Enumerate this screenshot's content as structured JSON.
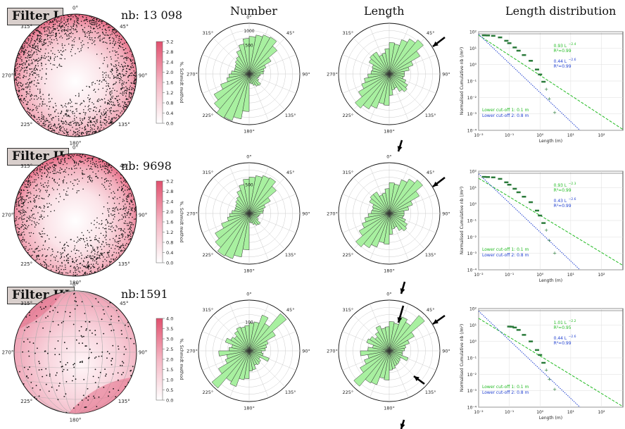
{
  "headers": {
    "number": "Number",
    "length": "Length",
    "dist": "Length distribution"
  },
  "rows": [
    {
      "filter": "Filter I",
      "nb": "nb: 13 098",
      "colorbar_ticks": [
        "3.2",
        "2.8",
        "2.4",
        "2.0",
        "1.6",
        "1.2",
        "0.8",
        "0.4",
        "0.0"
      ],
      "rose_number_labels": [
        "1000",
        "500"
      ],
      "fit1": "0.93 L",
      "fit1_exp": "−2.4",
      "r1": "R²=0.99",
      "fit2": "0.44 L",
      "fit2_exp": "−2.6",
      "r2": "R²=0.99"
    },
    {
      "filter": "Filter II",
      "nb": "nb: 9698",
      "colorbar_ticks": [
        "3.2",
        "2.8",
        "2.4",
        "2.0",
        "1.6",
        "1.2",
        "0.8",
        "0.4",
        "0.0"
      ],
      "rose_number_labels": [
        "500"
      ],
      "fit1": "0.93 L",
      "fit1_exp": "−2.3",
      "r1": "R²=0.99",
      "fit2": "0.43 L",
      "fit2_exp": "−2.6",
      "r2": "R²=0.99"
    },
    {
      "filter": "Filter III",
      "nb": "nb:1591",
      "colorbar_ticks": [
        "4.0",
        "3.5",
        "3.0",
        "2.5",
        "2.0",
        "1.5",
        "1.0",
        "0.5",
        "0.0"
      ],
      "rose_number_labels": [
        "100"
      ],
      "fit1": "1.01 L",
      "fit1_exp": "−2.2",
      "r1": "R²=0.95",
      "fit2": "0.44 L",
      "fit2_exp": "−2.6",
      "r2": "R²=0.99"
    }
  ],
  "common": {
    "compass": [
      "0°",
      "45°",
      "90°",
      "135°",
      "180°",
      "225°",
      "270°",
      "315°"
    ],
    "colorbar_label": "%, Schmidt method",
    "cutoff1": "Lower cut-off 1: 0.1 m",
    "cutoff2": "Lower cut-off 2: 0.8 m",
    "xlabel": "Length (m)",
    "ylabel": "Normalised Cumulative nb (/m²)",
    "x_ticks": [
      "10⁻²",
      "10⁻¹",
      "10⁰",
      "10¹",
      "10²"
    ],
    "y_ticks": [
      "10²",
      "10¹",
      "10⁰",
      "10⁻¹",
      "10⁻²",
      "10⁻³",
      "10⁻⁴"
    ]
  },
  "colors": {
    "rose_fill": "#a8f0a0",
    "fit1": "#22bb22",
    "fit2": "#1f3fd0",
    "data_points": "#2a7a3a",
    "density_high": "#e0506e"
  },
  "chart_data": [
    {
      "type": "scatter",
      "title": "Length distribution",
      "xlabel": "Length (m)",
      "ylabel": "Normalised Cumulative nb (/m²)",
      "xscale": "log",
      "yscale": "log",
      "xlim": [
        0.01,
        500
      ],
      "ylim": [
        0.0001,
        100
      ],
      "series": [
        {
          "name": "0.93 L^-2.4, R²=0.99",
          "type": "line",
          "x": [
            0.01,
            500
          ],
          "y": [
            61.6,
            0.000113
          ]
        },
        {
          "name": "0.44 L^-2.6, R²=0.99",
          "type": "line",
          "x": [
            0.01,
            20
          ],
          "y": [
            70.0,
            0.0001
          ]
        },
        {
          "type": "scatter",
          "x": [
            0.015,
            0.02,
            0.03,
            0.05,
            0.08,
            0.1,
            0.15,
            0.2,
            0.3,
            0.5,
            0.8,
            1.0,
            1.3,
            1.6,
            2,
            3
          ],
          "y": [
            60,
            59,
            56,
            45,
            28,
            20,
            11,
            7,
            3.8,
            1.7,
            0.5,
            0.25,
            0.09,
            0.03,
            0.008,
            0.0012
          ]
        }
      ]
    },
    {
      "type": "scatter",
      "title": "Length distribution",
      "xlabel": "Length (m)",
      "ylabel": "Normalised Cumulative nb (/m²)",
      "xscale": "log",
      "yscale": "log",
      "xlim": [
        0.01,
        500
      ],
      "ylim": [
        0.0001,
        100
      ],
      "series": [
        {
          "name": "0.93 L^-2.3, R²=0.99",
          "type": "line",
          "x": [
            0.01,
            500
          ],
          "y": [
            37.0,
            0.000185
          ]
        },
        {
          "name": "0.43 L^-2.6, R²=0.99",
          "type": "line",
          "x": [
            0.01,
            20
          ],
          "y": [
            68.4,
            0.0001
          ]
        },
        {
          "type": "scatter",
          "x": [
            0.015,
            0.02,
            0.03,
            0.05,
            0.08,
            0.1,
            0.15,
            0.2,
            0.3,
            0.5,
            0.8,
            1.0,
            1.3,
            1.6,
            2,
            3
          ],
          "y": [
            45,
            44,
            42,
            34,
            21,
            15,
            8.5,
            5.2,
            2.8,
            1.3,
            0.4,
            0.2,
            0.07,
            0.025,
            0.006,
            0.001
          ]
        }
      ]
    },
    {
      "type": "scatter",
      "title": "Length distribution",
      "xlabel": "Length (m)",
      "ylabel": "Normalised Cumulative nb (/m²)",
      "xscale": "log",
      "yscale": "log",
      "xlim": [
        0.01,
        500
      ],
      "ylim": [
        0.0001,
        100
      ],
      "series": [
        {
          "name": "1.01 L^-2.2, R²=0.95",
          "type": "line",
          "x": [
            0.01,
            500
          ],
          "y": [
            25.4,
            0.000109
          ]
        },
        {
          "name": "0.44 L^-2.6, R²=0.99",
          "type": "line",
          "x": [
            0.01,
            20
          ],
          "y": [
            70.0,
            0.0001
          ]
        },
        {
          "type": "scatter",
          "x": [
            0.1,
            0.12,
            0.15,
            0.2,
            0.3,
            0.5,
            0.8,
            1.0,
            1.3,
            1.6,
            2,
            3
          ],
          "y": [
            8,
            7.8,
            7,
            5,
            2.5,
            1.0,
            0.3,
            0.15,
            0.05,
            0.018,
            0.005,
            0.0012
          ]
        }
      ]
    }
  ]
}
